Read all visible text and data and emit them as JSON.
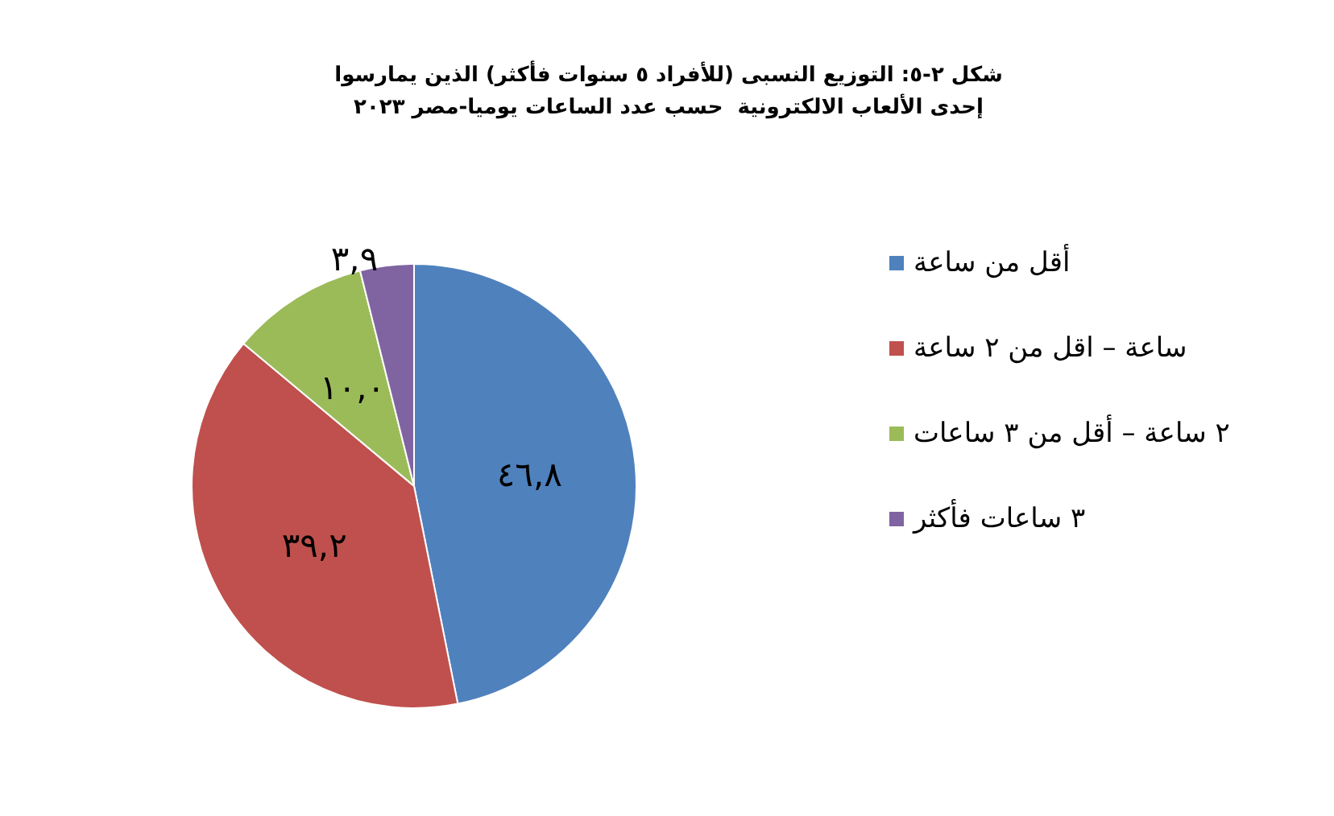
{
  "chart_data": {
    "type": "pie",
    "title": "شكل ٢-٥: التوزيع النسبى (للأفراد ٥ سنوات فأكثر) الذين يمارسوا\nإحدى الألعاب الالكترونية  حسب عدد الساعات يوميا-مصر ٢٠٢٣",
    "categories": [
      "أقل من ساعة",
      "ساعة – اقل من ٢ ساعة",
      "٢ ساعة – أقل من ٣ ساعات",
      "٣ ساعات فأكثر"
    ],
    "values": [
      46.8,
      39.2,
      10.0,
      3.9
    ],
    "value_labels": [
      "٤٦,٨",
      "٣٩,٢",
      "١٠,٠",
      "٣,٩"
    ],
    "colors": [
      "#4f81bd",
      "#c0504d",
      "#9bbb59",
      "#8064a2"
    ],
    "legend": "right"
  }
}
